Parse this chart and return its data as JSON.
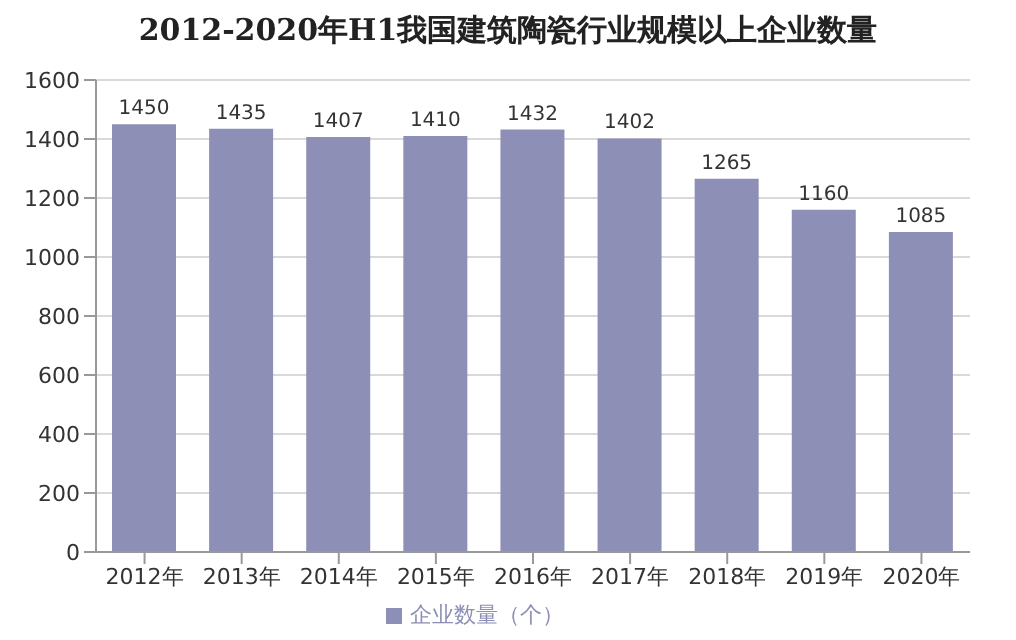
{
  "chart_data": {
    "type": "bar",
    "title": "2012-2020年H1我国建筑陶瓷行业规模以上企业数量",
    "categories": [
      "2012年",
      "2013年",
      "2014年",
      "2015年",
      "2016年",
      "2017年",
      "2018年",
      "2019年",
      "2020年"
    ],
    "series": [
      {
        "name": "企业数量（个）",
        "color": "#8d8fb6",
        "values": [
          1450,
          1435,
          1407,
          1410,
          1432,
          1402,
          1265,
          1160,
          1085
        ]
      }
    ],
    "ylim": [
      0,
      1600
    ],
    "yticks": [
      0,
      200,
      400,
      600,
      800,
      1000,
      1200,
      1400,
      1600
    ],
    "grid": "y",
    "legend": "bottom",
    "data_labels": true
  }
}
